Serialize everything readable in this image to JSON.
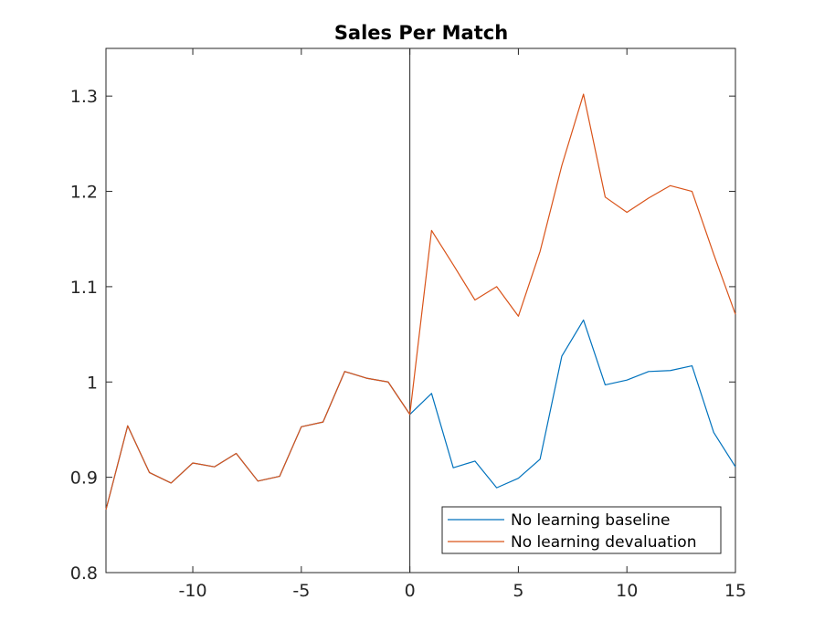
{
  "chart_data": {
    "type": "line",
    "title": "Sales Per Match",
    "xlabel": "",
    "ylabel": "",
    "xlim": [
      -14,
      15
    ],
    "ylim": [
      0.8,
      1.35
    ],
    "xticks": [
      -10,
      -5,
      0,
      5,
      10,
      15
    ],
    "xtick_labels": [
      "-10",
      "-5",
      "0",
      "5",
      "10",
      "15"
    ],
    "yticks": [
      0.8,
      0.9,
      1.0,
      1.1,
      1.2,
      1.3
    ],
    "ytick_labels": [
      "0.8",
      "0.9",
      "1",
      "1.1",
      "1.2",
      "1.3"
    ],
    "grid": false,
    "legend_position": "bottom-right",
    "vline_x": 0,
    "x": [
      -14,
      -13,
      -12,
      -11,
      -10,
      -9,
      -8,
      -7,
      -6,
      -5,
      -4,
      -3,
      -2,
      -1,
      0,
      1,
      2,
      3,
      4,
      5,
      6,
      7,
      8,
      9,
      10,
      11,
      12,
      13,
      14,
      15
    ],
    "series": [
      {
        "name": "No learning baseline",
        "color": "#0072BD",
        "values": [
          0.866,
          0.954,
          0.905,
          0.894,
          0.915,
          0.911,
          0.925,
          0.896,
          0.901,
          0.953,
          0.958,
          1.011,
          1.004,
          1.0,
          0.966,
          0.988,
          0.91,
          0.917,
          0.889,
          0.899,
          0.919,
          1.027,
          1.065,
          0.997,
          1.002,
          1.011,
          1.012,
          1.017,
          0.947,
          0.911
        ]
      },
      {
        "name": "No learning devaluation",
        "color": "#D95319",
        "values": [
          0.866,
          0.954,
          0.905,
          0.894,
          0.915,
          0.911,
          0.925,
          0.896,
          0.901,
          0.953,
          0.958,
          1.011,
          1.004,
          1.0,
          0.966,
          1.159,
          1.123,
          1.086,
          1.1,
          1.069,
          1.137,
          1.227,
          1.302,
          1.194,
          1.178,
          1.193,
          1.206,
          1.2,
          1.134,
          1.071
        ]
      }
    ]
  }
}
